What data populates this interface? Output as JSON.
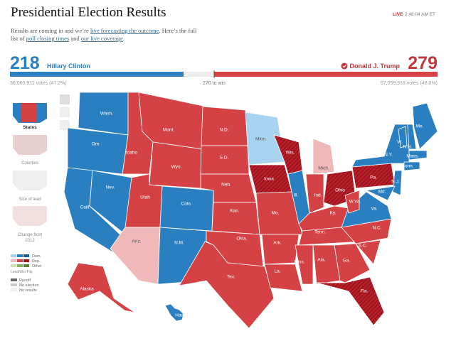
{
  "header": {
    "title": "Presidential Election Results",
    "live": "LIVE",
    "time": "2:48:04 AM ET"
  },
  "intro": {
    "text1": "Results are coming in and we’re ",
    "link1": "live forecasting the outcome",
    "text2": ". Here’s the full",
    "text3": "list of ",
    "link2": "poll closing times",
    "text4": " and ",
    "link3": "our live coverage",
    "text5": "."
  },
  "candidates": [
    {
      "electoral": "218",
      "name": "Hillary Clinton",
      "popular": "56,060,911 votes (47.2%)"
    },
    {
      "electoral": "279",
      "name": "Donald J. Trump",
      "popular": "57,059,918 votes (48.0%)"
    }
  ],
  "to_win": "270 to win",
  "views": [
    "States",
    "Counties",
    "Size of lead",
    "Change from",
    "2012"
  ],
  "legend": {
    "dem": "Dem.",
    "rep": "Rep.",
    "other": "Other",
    "flip": "Lead/Win Flip",
    "runoff": "Runoff",
    "no_election": "No election",
    "no_results": "No results"
  },
  "map": {
    "states": [
      "Wash.",
      "Ore.",
      "Calif.",
      "Nev.",
      "Idaho",
      "Mont.",
      "Wyo.",
      "Utah",
      "Colo.",
      "Ariz.",
      "N.M.",
      "N.D.",
      "S.D.",
      "Neb.",
      "Kan.",
      "Okla.",
      "Tex.",
      "Minn.",
      "Iowa",
      "Mo.",
      "Ark.",
      "La.",
      "Wis.",
      "Ill.",
      "Mich.",
      "Ind.",
      "Ohio",
      "Ky.",
      "Tenn.",
      "Miss.",
      "Ala.",
      "Ga.",
      "Fla.",
      "S.C.",
      "N.C.",
      "Va.",
      "W.Va.",
      "Pa.",
      "N.Y.",
      "N.J.",
      "Md.",
      "Vt.",
      "N.H.",
      "Me.",
      "Mass.",
      "Conn.",
      "Alaska",
      "Hawaii"
    ]
  }
}
